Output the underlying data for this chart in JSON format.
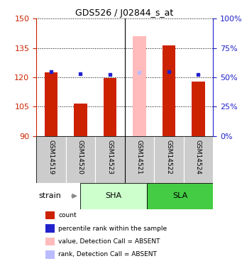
{
  "title": "GDS526 / J02844_s_at",
  "samples": [
    "GSM14519",
    "GSM14520",
    "GSM14523",
    "GSM14521",
    "GSM14522",
    "GSM14524"
  ],
  "ylim_left": [
    90,
    150
  ],
  "ylim_right": [
    0,
    100
  ],
  "yticks_left": [
    90,
    105,
    120,
    135,
    150
  ],
  "yticks_right": [
    0,
    25,
    50,
    75,
    100
  ],
  "red_values": [
    122.5,
    106.5,
    119.5,
    141.0,
    136.5,
    118.0
  ],
  "blue_values": [
    123.0,
    122.0,
    121.5,
    122.5,
    123.0,
    121.5
  ],
  "absent": [
    false,
    false,
    false,
    true,
    false,
    false
  ],
  "bar_color": "#cc2200",
  "dot_color": "#2222cc",
  "absent_bar_color": "#ffbbbb",
  "absent_dot_color": "#bbbbff",
  "sha_color": "#ccffcc",
  "sla_color": "#44cc44",
  "left_axis_color": "#cc2200",
  "right_axis_color": "#2222cc",
  "legend_items": [
    {
      "color": "#cc2200",
      "label": "count"
    },
    {
      "color": "#2222cc",
      "label": "percentile rank within the sample"
    },
    {
      "color": "#ffbbbb",
      "label": "value, Detection Call = ABSENT"
    },
    {
      "color": "#bbbbff",
      "label": "rank, Detection Call = ABSENT"
    }
  ]
}
